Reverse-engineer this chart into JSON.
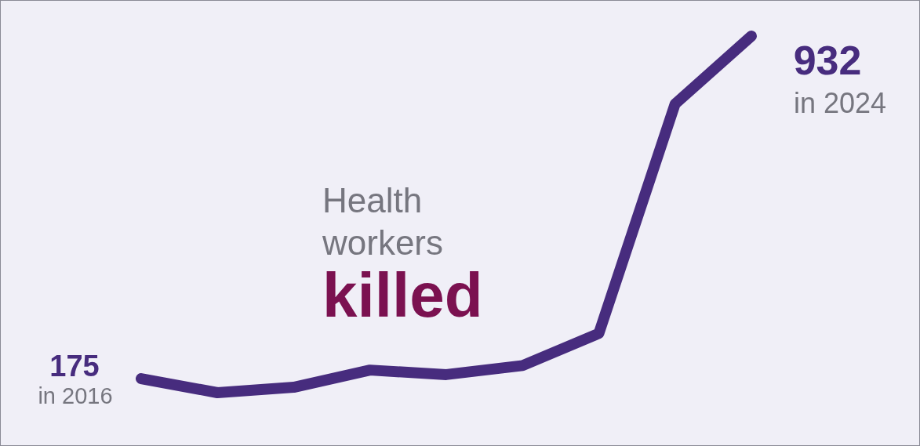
{
  "chart_data": {
    "type": "line",
    "categories": [
      null,
      null,
      null,
      null,
      null,
      null,
      null,
      null,
      null
    ],
    "series": [
      {
        "color": "#472c7e",
        "values": [
          175,
          144,
          156,
          194,
          184,
          204,
          275,
          782,
          932
        ],
        "value_labels": [
          "175",
          null,
          null,
          null,
          null,
          null,
          null,
          null,
          "932"
        ]
      }
    ],
    "annotations": [
      "in 2016",
      "in 2024",
      "Health workers",
      "killed"
    ],
    "marker": "none",
    "line_style": "solid"
  }
}
